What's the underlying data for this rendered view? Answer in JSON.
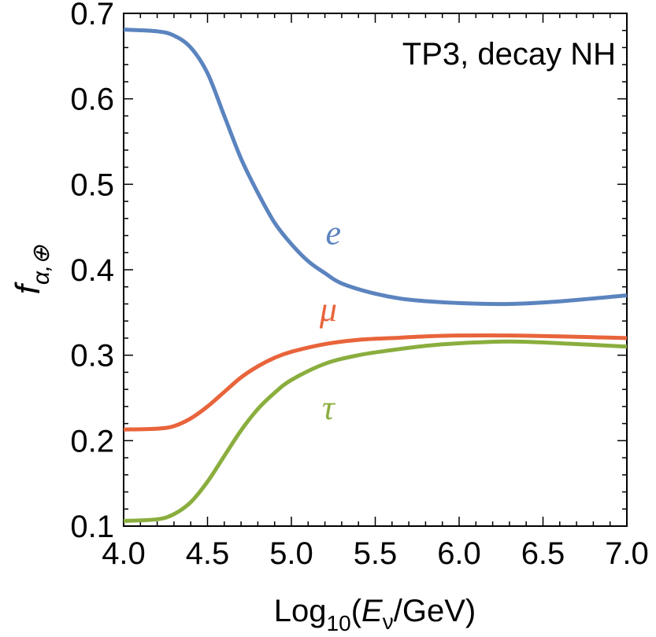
{
  "chart_data": {
    "type": "line",
    "annotation": "TP3, decay NH",
    "xlabel": {
      "prefix": "Log",
      "sub": "10",
      "open": "(",
      "var": "E",
      "var_sub": "ν",
      "rest": "/GeV)"
    },
    "ylabel": {
      "main": "f",
      "sub": "α,⊕"
    },
    "xlim": [
      4.0,
      7.0
    ],
    "ylim": [
      0.1,
      0.7
    ],
    "x_ticks": [
      4.0,
      4.5,
      5.0,
      5.5,
      6.0,
      6.5,
      7.0
    ],
    "x_tick_labels": [
      "4.0",
      "4.5",
      "5.0",
      "5.5",
      "6.0",
      "6.5",
      "7.0"
    ],
    "y_ticks": [
      0.1,
      0.2,
      0.3,
      0.4,
      0.5,
      0.6,
      0.7
    ],
    "y_tick_labels": [
      "0.1",
      "0.2",
      "0.3",
      "0.4",
      "0.5",
      "0.6",
      "0.7"
    ],
    "series": [
      {
        "name": "e",
        "color": "#5b84bf",
        "x": [
          4.0,
          4.2,
          4.3,
          4.4,
          4.5,
          4.6,
          4.7,
          4.8,
          4.9,
          5.0,
          5.1,
          5.2,
          5.3,
          5.5,
          5.7,
          6.0,
          6.3,
          6.6,
          7.0
        ],
        "values": [
          0.681,
          0.679,
          0.674,
          0.66,
          0.63,
          0.58,
          0.53,
          0.49,
          0.455,
          0.43,
          0.41,
          0.396,
          0.384,
          0.372,
          0.365,
          0.361,
          0.36,
          0.363,
          0.37
        ],
        "label_x": 5.25,
        "label_y": 0.43
      },
      {
        "name": "μ",
        "color": "#e8643b",
        "x": [
          4.0,
          4.2,
          4.3,
          4.4,
          4.5,
          4.6,
          4.7,
          4.8,
          4.9,
          5.0,
          5.2,
          5.4,
          5.6,
          5.8,
          6.0,
          6.3,
          6.6,
          7.0
        ],
        "values": [
          0.213,
          0.214,
          0.217,
          0.226,
          0.24,
          0.257,
          0.274,
          0.287,
          0.297,
          0.304,
          0.313,
          0.318,
          0.32,
          0.322,
          0.323,
          0.323,
          0.322,
          0.32
        ],
        "label_x": 5.22,
        "label_y": 0.34
      },
      {
        "name": "τ",
        "color": "#8aae3e",
        "x": [
          4.0,
          4.2,
          4.3,
          4.4,
          4.5,
          4.6,
          4.7,
          4.8,
          4.9,
          5.0,
          5.2,
          5.4,
          5.6,
          5.8,
          6.0,
          6.3,
          6.6,
          7.0
        ],
        "values": [
          0.106,
          0.108,
          0.114,
          0.128,
          0.152,
          0.182,
          0.212,
          0.237,
          0.256,
          0.271,
          0.29,
          0.3,
          0.306,
          0.311,
          0.314,
          0.316,
          0.314,
          0.31
        ],
        "label_x": 5.22,
        "label_y": 0.225
      }
    ]
  }
}
